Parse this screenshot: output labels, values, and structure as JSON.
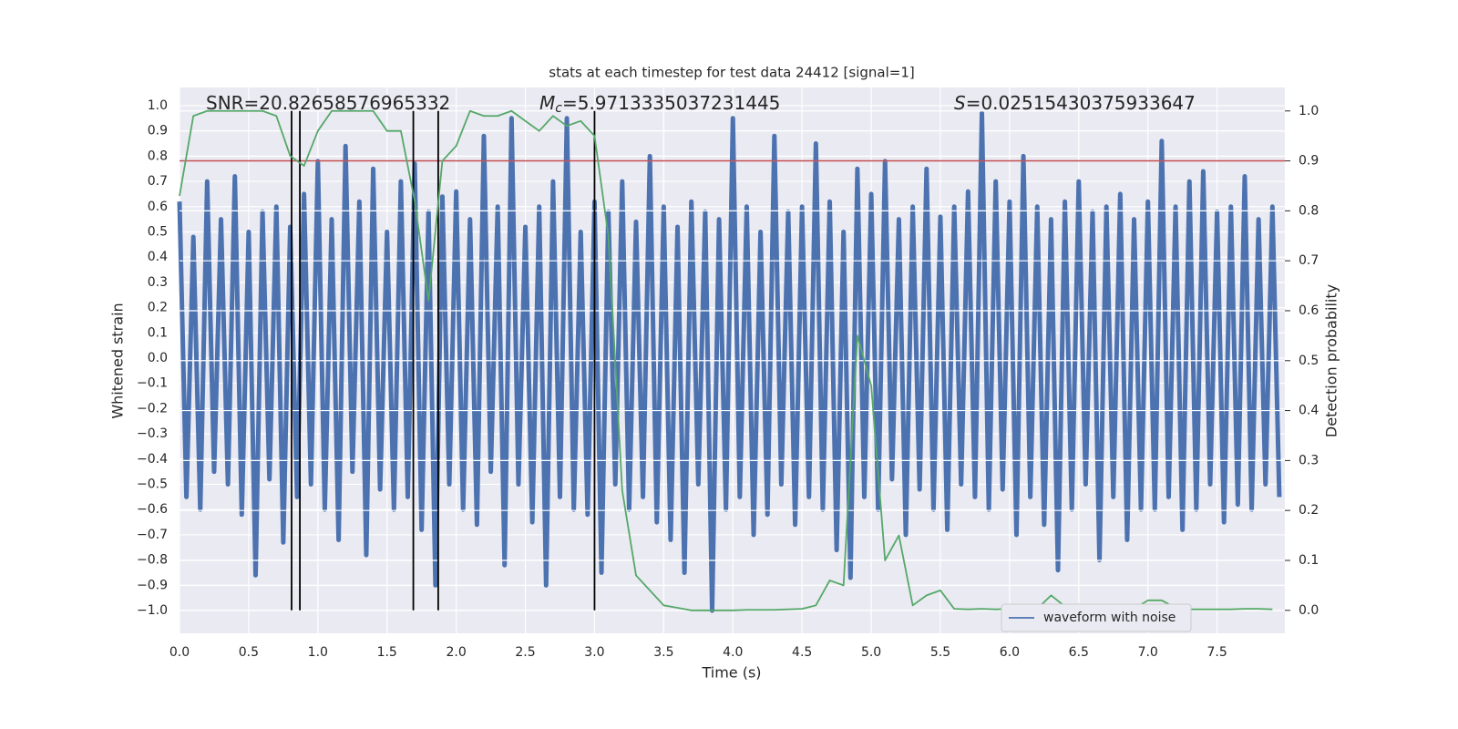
{
  "chart_data": {
    "type": "line",
    "title": "stats at each timestep for test data 24412 [signal=1]",
    "xlabel": "Time (s)",
    "ylabel": "Whitened strain",
    "y2label": "Detection probability",
    "annotations": [
      {
        "text": "SNR=20.82658576965332"
      },
      {
        "symbol": "M",
        "sub": "c",
        "text": "=5.9713335037231445"
      },
      {
        "symbol": "S",
        "text": "=0.02515430375933647"
      }
    ],
    "xlim": [
      0,
      7.99
    ],
    "ylim": [
      -1.09,
      1.072
    ],
    "y2lim": [
      -0.046,
      1.047
    ],
    "xticks": [
      {
        "value": 0,
        "label": "0.0"
      },
      0.5,
      {
        "value": 1,
        "label": "1.0"
      },
      1.5,
      {
        "value": 2,
        "label": "2.0"
      },
      2.5,
      {
        "value": 3,
        "label": "3.0"
      },
      3.5,
      {
        "value": 4,
        "label": "4.0"
      },
      4.5,
      {
        "value": 5,
        "label": "5.0"
      },
      5.5,
      {
        "value": 6,
        "label": "6.0"
      },
      6.5,
      {
        "value": 7,
        "label": "7.0"
      },
      7.5
    ],
    "yticks": [
      {
        "value": 1,
        "label": "1.0"
      },
      0.9,
      0.8,
      0.7,
      0.6,
      0.5,
      0.4,
      0.3,
      0.2,
      0.1,
      {
        "value": 0,
        "label": "0.0"
      },
      {
        "value": -0.1,
        "label": "−0.1"
      },
      {
        "value": -0.2,
        "label": "−0.2"
      },
      {
        "value": -0.3,
        "label": "−0.3"
      },
      {
        "value": -0.4,
        "label": "−0.4"
      },
      {
        "value": -0.5,
        "label": "−0.5"
      },
      {
        "value": -0.6,
        "label": "−0.6"
      },
      {
        "value": -0.7,
        "label": "−0.7"
      },
      {
        "value": -0.8,
        "label": "−0.8"
      },
      {
        "value": -0.9,
        "label": "−0.9"
      },
      {
        "value": -1,
        "label": "−1.0"
      }
    ],
    "y2ticks": [
      {
        "value": 1,
        "label": "1.0"
      },
      0.9,
      0.8,
      0.7,
      0.6,
      0.5,
      0.4,
      0.3,
      0.2,
      0.1,
      {
        "value": 0,
        "label": "0.0"
      }
    ],
    "grid": true,
    "legend": "lower right",
    "hline": {
      "y": 0.9,
      "axis": "y2",
      "color": "#c44e52"
    },
    "vlines": {
      "x": [
        0.81,
        0.87,
        1.69,
        1.87,
        3.0
      ],
      "ymin": 0,
      "ymax": 1,
      "axis": "y2",
      "color": "#000000"
    },
    "series": [
      {
        "name": "waveform with noise",
        "color": "#4c72b0",
        "x": [
          0,
          0.05,
          0.1,
          0.15,
          0.2,
          0.25,
          0.3,
          0.35,
          0.4,
          0.45,
          0.5,
          0.55,
          0.6,
          0.65,
          0.7,
          0.75,
          0.8,
          0.85,
          0.9,
          0.95,
          1,
          1.05,
          1.1,
          1.15,
          1.2,
          1.25,
          1.3,
          1.35,
          1.4,
          1.45,
          1.5,
          1.55,
          1.6,
          1.65,
          1.7,
          1.75,
          1.8,
          1.85,
          1.9,
          1.95,
          2,
          2.05,
          2.1,
          2.15,
          2.2,
          2.25,
          2.3,
          2.35,
          2.4,
          2.45,
          2.5,
          2.55,
          2.6,
          2.65,
          2.7,
          2.75,
          2.8,
          2.85,
          2.9,
          2.95,
          3,
          3.05,
          3.1,
          3.15,
          3.2,
          3.25,
          3.3,
          3.35,
          3.4,
          3.45,
          3.5,
          3.55,
          3.6,
          3.65,
          3.7,
          3.75,
          3.8,
          3.85,
          3.9,
          3.95,
          4,
          4.05,
          4.1,
          4.15,
          4.2,
          4.25,
          4.3,
          4.35,
          4.4,
          4.45,
          4.5,
          4.55,
          4.6,
          4.65,
          4.7,
          4.75,
          4.8,
          4.85,
          4.9,
          4.95,
          5,
          5.05,
          5.1,
          5.15,
          5.2,
          5.25,
          5.3,
          5.35,
          5.4,
          5.45,
          5.5,
          5.55,
          5.6,
          5.65,
          5.7,
          5.75,
          5.8,
          5.85,
          5.9,
          5.95,
          6,
          6.05,
          6.1,
          6.15,
          6.2,
          6.25,
          6.3,
          6.35,
          6.4,
          6.45,
          6.5,
          6.55,
          6.6,
          6.65,
          6.7,
          6.75,
          6.8,
          6.85,
          6.9,
          6.95,
          7,
          7.05,
          7.1,
          7.15,
          7.2,
          7.25,
          7.3,
          7.35,
          7.4,
          7.45,
          7.5,
          7.55,
          7.6,
          7.65,
          7.7,
          7.75,
          7.8,
          7.85,
          7.9,
          7.95
        ],
        "values": [
          0.62,
          -0.55,
          0.48,
          -0.6,
          0.7,
          -0.45,
          0.55,
          -0.5,
          0.72,
          -0.62,
          0.5,
          -0.86,
          0.58,
          -0.48,
          0.6,
          -0.73,
          0.52,
          -0.55,
          0.65,
          -0.5,
          0.78,
          -0.6,
          0.55,
          -0.72,
          0.84,
          -0.45,
          0.62,
          -0.78,
          0.75,
          -0.52,
          0.5,
          -0.6,
          0.7,
          -0.55,
          0.77,
          -0.68,
          0.58,
          -0.9,
          0.64,
          -0.5,
          0.66,
          -0.6,
          0.55,
          -0.66,
          0.88,
          -0.45,
          0.6,
          -0.82,
          0.95,
          -0.5,
          0.52,
          -0.65,
          0.6,
          -0.9,
          0.7,
          -0.55,
          0.95,
          -0.6,
          0.5,
          -0.62,
          0.62,
          -0.85,
          0.58,
          -0.5,
          0.7,
          -0.6,
          0.54,
          -0.55,
          0.8,
          -0.65,
          0.6,
          -0.72,
          0.52,
          -0.85,
          0.62,
          -0.5,
          0.58,
          -1.0,
          0.55,
          -0.6,
          0.95,
          -0.55,
          0.6,
          -0.7,
          0.5,
          -0.62,
          0.88,
          -0.5,
          0.58,
          -0.66,
          0.6,
          -0.55,
          0.85,
          -0.6,
          0.62,
          -0.76,
          0.5,
          -0.87,
          0.75,
          -0.55,
          0.65,
          -0.6,
          0.78,
          -0.48,
          0.55,
          -0.7,
          0.6,
          -0.52,
          0.75,
          -0.6,
          0.56,
          -0.68,
          0.6,
          -0.5,
          0.66,
          -0.55,
          0.97,
          -0.6,
          0.7,
          -0.52,
          0.62,
          -0.7,
          0.8,
          -0.55,
          0.6,
          -0.66,
          0.55,
          -0.84,
          0.62,
          -0.6,
          0.7,
          -0.5,
          0.58,
          -0.8,
          0.6,
          -0.55,
          0.65,
          -0.72,
          0.55,
          -0.6,
          0.62,
          -0.6,
          0.86,
          -0.55,
          0.6,
          -0.68,
          0.7,
          -0.6,
          0.74,
          -0.5,
          0.58,
          -0.65,
          0.6,
          -0.58,
          0.72,
          -0.6,
          0.55,
          -0.5,
          0.6,
          -0.55
        ]
      },
      {
        "color": "#55a868",
        "axis": "y2",
        "x": [
          0,
          0.1,
          0.2,
          0.3,
          0.4,
          0.5,
          0.6,
          0.7,
          0.8,
          0.9,
          1,
          1.1,
          1.2,
          1.3,
          1.4,
          1.5,
          1.6,
          1.7,
          1.8,
          1.9,
          2,
          2.1,
          2.2,
          2.3,
          2.4,
          2.5,
          2.6,
          2.7,
          2.8,
          2.9,
          3,
          3.1,
          3.2,
          3.3,
          3.4,
          3.5,
          3.6,
          3.7,
          3.8,
          3.9,
          4,
          4.1,
          4.2,
          4.3,
          4.4,
          4.5,
          4.6,
          4.7,
          4.8,
          4.9,
          5,
          5.1,
          5.2,
          5.3,
          5.4,
          5.5,
          5.6,
          5.7,
          5.8,
          5.9,
          6,
          6.1,
          6.2,
          6.3,
          6.4,
          6.5,
          6.6,
          6.7,
          6.8,
          6.9,
          7,
          7.1,
          7.2,
          7.3,
          7.4,
          7.5,
          7.6,
          7.7,
          7.8,
          7.9
        ],
        "values": [
          0.83,
          0.99,
          1.0,
          1.0,
          1.0,
          1.0,
          1.0,
          0.99,
          0.91,
          0.89,
          0.96,
          1.0,
          1.0,
          1.0,
          1.0,
          0.96,
          0.96,
          0.82,
          0.62,
          0.9,
          0.93,
          1.0,
          0.99,
          0.99,
          1.0,
          0.98,
          0.96,
          0.99,
          0.97,
          0.98,
          0.95,
          0.75,
          0.24,
          0.07,
          0.04,
          0.01,
          0.005,
          0.0,
          0.0,
          0.0,
          0.0,
          0.001,
          0.001,
          0.001,
          0.002,
          0.003,
          0.01,
          0.06,
          0.05,
          0.55,
          0.45,
          0.1,
          0.15,
          0.01,
          0.03,
          0.04,
          0.003,
          0.002,
          0.003,
          0.002,
          0.003,
          0.002,
          0.003,
          0.03,
          0.008,
          0.012,
          0.005,
          0.003,
          0.004,
          0.003,
          0.02,
          0.02,
          0.005,
          0.002,
          0.002,
          0.002,
          0.002,
          0.003,
          0.003,
          0.002
        ]
      }
    ]
  }
}
